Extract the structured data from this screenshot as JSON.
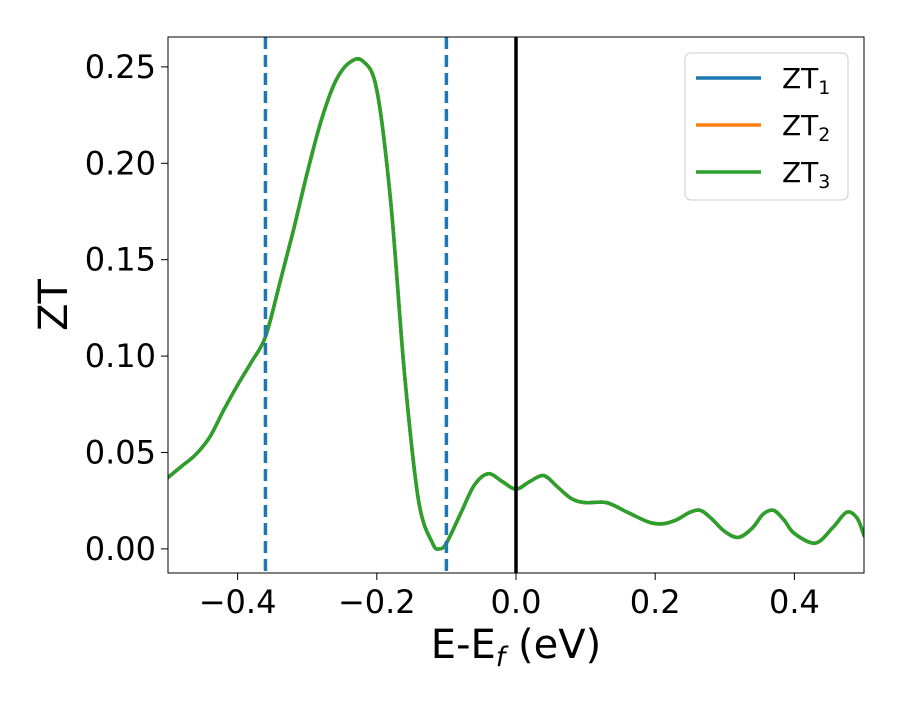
{
  "chart_data": {
    "type": "line",
    "xlabel": {
      "main": "E-E",
      "sub": "f",
      "suffix": " (eV)"
    },
    "ylabel": "ZT",
    "xlim": [
      -0.5,
      0.5
    ],
    "ylim": [
      -0.0125,
      0.2655
    ],
    "xticks": [
      -0.4,
      -0.2,
      0.0,
      0.2,
      0.4
    ],
    "xtick_labels": [
      "−0.4",
      "−0.2",
      "0.0",
      "0.2",
      "0.4"
    ],
    "yticks": [
      0.0,
      0.05,
      0.1,
      0.15,
      0.2,
      0.25
    ],
    "ytick_labels": [
      "0.00",
      "0.05",
      "0.10",
      "0.15",
      "0.20",
      "0.25"
    ],
    "grid": false,
    "legend_position": "upper right",
    "vertical_lines": [
      {
        "x": -0.36,
        "style": "dashed",
        "color": "#1f77b4"
      },
      {
        "x": -0.1,
        "style": "dashed",
        "color": "#1f77b4"
      },
      {
        "x": 0.0,
        "style": "solid",
        "color": "#000000"
      }
    ],
    "x": [
      -0.5,
      -0.48,
      -0.46,
      -0.44,
      -0.42,
      -0.4,
      -0.38,
      -0.36,
      -0.34,
      -0.32,
      -0.3,
      -0.28,
      -0.26,
      -0.24,
      -0.22,
      -0.2,
      -0.18,
      -0.16,
      -0.14,
      -0.12,
      -0.11,
      -0.1,
      -0.08,
      -0.06,
      -0.04,
      -0.02,
      0.0,
      0.02,
      0.04,
      0.06,
      0.08,
      0.1,
      0.13,
      0.16,
      0.19,
      0.21,
      0.23,
      0.25,
      0.265,
      0.28,
      0.3,
      0.32,
      0.34,
      0.355,
      0.37,
      0.385,
      0.4,
      0.43,
      0.455,
      0.475,
      0.49,
      0.5
    ],
    "series": [
      {
        "name": "ZT",
        "name_sub": "1",
        "color": "#1f77b4",
        "y": [
          0.037,
          0.043,
          0.049,
          0.058,
          0.072,
          0.085,
          0.097,
          0.11,
          0.137,
          0.165,
          0.195,
          0.222,
          0.242,
          0.252,
          0.253,
          0.238,
          0.18,
          0.09,
          0.025,
          0.003,
          0.0,
          0.003,
          0.018,
          0.033,
          0.039,
          0.035,
          0.031,
          0.035,
          0.038,
          0.032,
          0.026,
          0.024,
          0.024,
          0.019,
          0.014,
          0.013,
          0.015,
          0.019,
          0.02,
          0.016,
          0.009,
          0.006,
          0.011,
          0.018,
          0.02,
          0.015,
          0.008,
          0.003,
          0.011,
          0.019,
          0.016,
          0.007
        ]
      },
      {
        "name": "ZT",
        "name_sub": "2",
        "color": "#ff7f0e",
        "y": [
          0.037,
          0.043,
          0.049,
          0.058,
          0.072,
          0.085,
          0.097,
          0.11,
          0.137,
          0.165,
          0.195,
          0.222,
          0.242,
          0.252,
          0.253,
          0.238,
          0.18,
          0.09,
          0.025,
          0.003,
          0.0,
          0.003,
          0.018,
          0.033,
          0.039,
          0.035,
          0.031,
          0.035,
          0.038,
          0.032,
          0.026,
          0.024,
          0.024,
          0.019,
          0.014,
          0.013,
          0.015,
          0.019,
          0.02,
          0.016,
          0.009,
          0.006,
          0.011,
          0.018,
          0.02,
          0.015,
          0.008,
          0.003,
          0.011,
          0.019,
          0.016,
          0.007
        ]
      },
      {
        "name": "ZT",
        "name_sub": "3",
        "color": "#2ca02c",
        "y": [
          0.037,
          0.043,
          0.049,
          0.058,
          0.072,
          0.085,
          0.097,
          0.11,
          0.137,
          0.165,
          0.195,
          0.222,
          0.242,
          0.252,
          0.253,
          0.238,
          0.18,
          0.09,
          0.025,
          0.003,
          0.0,
          0.003,
          0.018,
          0.033,
          0.039,
          0.035,
          0.031,
          0.035,
          0.038,
          0.032,
          0.026,
          0.024,
          0.024,
          0.019,
          0.014,
          0.013,
          0.015,
          0.019,
          0.02,
          0.016,
          0.009,
          0.006,
          0.011,
          0.018,
          0.02,
          0.015,
          0.008,
          0.003,
          0.011,
          0.019,
          0.016,
          0.007
        ]
      }
    ]
  }
}
